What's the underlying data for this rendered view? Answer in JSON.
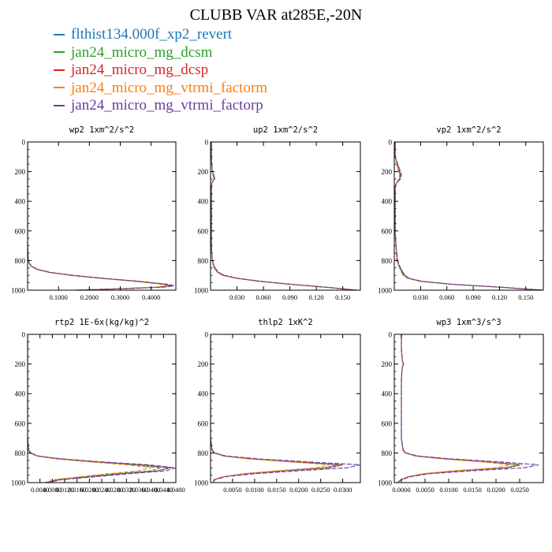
{
  "title": "CLUBB VAR at285E,-20N",
  "legend": [
    {
      "name": "flthist134.000f_xp2_revert",
      "color": "#1f77b4"
    },
    {
      "name": "jan24_micro_mg_dcsm",
      "color": "#2ca02c"
    },
    {
      "name": "jan24_micro_mg_dcsp",
      "color": "#d62728"
    },
    {
      "name": "jan24_micro_mg_vtrmi_factorm",
      "color": "#ff7f0e"
    },
    {
      "name": "jan24_micro_mg_vtrmi_factorp",
      "color": "#6a3d9a"
    }
  ],
  "chart_data": [
    {
      "type": "line",
      "title": "wp2   1xm^2/s^2",
      "xlim": [
        0,
        0.48
      ],
      "ylim": [
        1000,
        0
      ],
      "yticks": [
        0,
        200,
        400,
        600,
        800,
        1000
      ],
      "xticks": [
        "0.1000",
        "0.2000",
        "0.3000",
        "0.4000"
      ],
      "xtick_values": [
        0.1,
        0.2,
        0.3,
        0.4
      ],
      "y": [
        0,
        100,
        200,
        300,
        400,
        500,
        600,
        700,
        800,
        820,
        840,
        860,
        880,
        900,
        920,
        940,
        960,
        970,
        980,
        990,
        1000
      ],
      "series": [
        {
          "values": [
            0,
            0,
            0,
            0,
            0,
            0,
            0,
            0,
            0.002,
            0.005,
            0.012,
            0.03,
            0.07,
            0.14,
            0.24,
            0.35,
            0.44,
            0.46,
            0.42,
            0.3,
            0.15
          ]
        },
        {
          "values": [
            0,
            0,
            0,
            0,
            0,
            0,
            0,
            0,
            0.002,
            0.005,
            0.012,
            0.03,
            0.07,
            0.14,
            0.24,
            0.36,
            0.45,
            0.47,
            0.43,
            0.31,
            0.15
          ]
        },
        {
          "values": [
            0,
            0,
            0,
            0,
            0,
            0,
            0,
            0,
            0.002,
            0.006,
            0.014,
            0.032,
            0.072,
            0.145,
            0.245,
            0.355,
            0.445,
            0.465,
            0.425,
            0.305,
            0.15
          ]
        },
        {
          "values": [
            0,
            0,
            0,
            0,
            0,
            0,
            0,
            0,
            0.002,
            0.005,
            0.012,
            0.03,
            0.068,
            0.138,
            0.235,
            0.345,
            0.435,
            0.455,
            0.415,
            0.295,
            0.15
          ]
        },
        {
          "values": [
            0,
            0,
            0,
            0,
            0,
            0,
            0,
            0,
            0.002,
            0.006,
            0.015,
            0.034,
            0.075,
            0.15,
            0.25,
            0.36,
            0.455,
            0.475,
            0.44,
            0.32,
            0.16
          ]
        }
      ]
    },
    {
      "type": "line",
      "title": "up2   1xm^2/s^2",
      "xlim": [
        0,
        0.17
      ],
      "ylim": [
        1000,
        0
      ],
      "yticks": [
        0,
        200,
        400,
        600,
        800,
        1000
      ],
      "xticks": [
        "0.030",
        "0.060",
        "0.090",
        "0.120",
        "0.150"
      ],
      "xtick_values": [
        0.03,
        0.06,
        0.09,
        0.12,
        0.15
      ],
      "y": [
        0,
        100,
        200,
        230,
        250,
        270,
        300,
        400,
        500,
        600,
        700,
        800,
        850,
        880,
        900,
        920,
        940,
        960,
        980,
        1000
      ],
      "series": [
        {
          "values": [
            0.001,
            0.001,
            0.002,
            0.004,
            0.004,
            0.002,
            0.001,
            0.001,
            0.001,
            0.001,
            0.001,
            0.002,
            0.004,
            0.008,
            0.014,
            0.03,
            0.055,
            0.09,
            0.13,
            0.165
          ]
        },
        {
          "values": [
            0.001,
            0.001,
            0.002,
            0.003,
            0.004,
            0.002,
            0.001,
            0.001,
            0.001,
            0.001,
            0.001,
            0.002,
            0.004,
            0.008,
            0.015,
            0.031,
            0.056,
            0.091,
            0.131,
            0.166
          ]
        },
        {
          "values": [
            0.001,
            0.001,
            0.002,
            0.004,
            0.005,
            0.002,
            0.001,
            0.001,
            0.001,
            0.001,
            0.001,
            0.002,
            0.005,
            0.009,
            0.016,
            0.032,
            0.057,
            0.092,
            0.132,
            0.167
          ]
        },
        {
          "values": [
            0.001,
            0.001,
            0.002,
            0.003,
            0.004,
            0.002,
            0.001,
            0.001,
            0.001,
            0.001,
            0.001,
            0.002,
            0.004,
            0.008,
            0.014,
            0.029,
            0.054,
            0.089,
            0.129,
            0.164
          ]
        },
        {
          "values": [
            0.001,
            0.001,
            0.002,
            0.004,
            0.004,
            0.002,
            0.001,
            0.001,
            0.001,
            0.001,
            0.001,
            0.002,
            0.005,
            0.009,
            0.015,
            0.031,
            0.056,
            0.091,
            0.131,
            0.166
          ]
        }
      ]
    },
    {
      "type": "line",
      "title": "vp2   1xm^2/s^2",
      "xlim": [
        0,
        0.17
      ],
      "ylim": [
        1000,
        0
      ],
      "yticks": [
        0,
        200,
        400,
        600,
        800,
        1000
      ],
      "xticks": [
        "0.030",
        "0.060",
        "0.090",
        "0.120",
        "0.150"
      ],
      "xtick_values": [
        0.03,
        0.06,
        0.09,
        0.12,
        0.15
      ],
      "y": [
        0,
        100,
        150,
        200,
        220,
        250,
        270,
        300,
        400,
        500,
        600,
        700,
        800,
        850,
        880,
        900,
        920,
        940,
        960,
        980,
        1000
      ],
      "series": [
        {
          "values": [
            0.001,
            0.001,
            0.003,
            0.005,
            0.007,
            0.006,
            0.003,
            0.001,
            0.001,
            0.001,
            0.001,
            0.002,
            0.003,
            0.006,
            0.009,
            0.011,
            0.016,
            0.03,
            0.065,
            0.12,
            0.17
          ]
        },
        {
          "values": [
            0.001,
            0.001,
            0.003,
            0.006,
            0.008,
            0.007,
            0.003,
            0.001,
            0.001,
            0.001,
            0.001,
            0.002,
            0.003,
            0.006,
            0.009,
            0.012,
            0.017,
            0.031,
            0.066,
            0.121,
            0.17
          ]
        },
        {
          "values": [
            0.001,
            0.001,
            0.004,
            0.006,
            0.007,
            0.006,
            0.003,
            0.001,
            0.001,
            0.001,
            0.001,
            0.002,
            0.003,
            0.007,
            0.01,
            0.012,
            0.017,
            0.031,
            0.066,
            0.121,
            0.17
          ]
        },
        {
          "values": [
            0.001,
            0.001,
            0.003,
            0.005,
            0.006,
            0.005,
            0.003,
            0.001,
            0.001,
            0.001,
            0.001,
            0.002,
            0.003,
            0.006,
            0.008,
            0.01,
            0.015,
            0.029,
            0.064,
            0.119,
            0.17
          ]
        },
        {
          "values": [
            0.001,
            0.001,
            0.004,
            0.007,
            0.008,
            0.007,
            0.004,
            0.001,
            0.001,
            0.001,
            0.001,
            0.002,
            0.004,
            0.007,
            0.01,
            0.012,
            0.017,
            0.031,
            0.066,
            0.121,
            0.17
          ]
        }
      ]
    },
    {
      "type": "line",
      "title": "rtp2   1E-6x(kg/kg)^2",
      "xlim": [
        0,
        0.048
      ],
      "ylim": [
        1000,
        0
      ],
      "yticks": [
        0,
        200,
        400,
        600,
        800,
        1000
      ],
      "xticks": [
        "0.0040",
        "0.0080",
        "0.0120",
        "0.0160",
        "0.0200",
        "0.0240",
        "0.0280",
        "0.0320",
        "0.0360",
        "0.0400",
        "0.0440",
        "0.0480"
      ],
      "xtick_values": [
        0.004,
        0.008,
        0.012,
        0.016,
        0.02,
        0.024,
        0.028,
        0.032,
        0.036,
        0.04,
        0.044,
        0.048
      ],
      "y": [
        0,
        100,
        200,
        300,
        400,
        500,
        600,
        700,
        780,
        800,
        820,
        840,
        860,
        880,
        900,
        920,
        940,
        960,
        980,
        1000
      ],
      "series": [
        {
          "values": [
            0,
            0,
            0,
            0,
            0,
            0,
            0,
            0,
            0.0003,
            0.0008,
            0.003,
            0.01,
            0.022,
            0.036,
            0.046,
            0.042,
            0.03,
            0.02,
            0.01,
            0.006
          ]
        },
        {
          "values": [
            0,
            0,
            0,
            0,
            0,
            0,
            0,
            0,
            0.0003,
            0.0008,
            0.003,
            0.01,
            0.021,
            0.034,
            0.043,
            0.04,
            0.028,
            0.018,
            0.009,
            0.0055
          ]
        },
        {
          "values": [
            0,
            0,
            0,
            0,
            0,
            0,
            0,
            0,
            0.0003,
            0.0009,
            0.0032,
            0.0105,
            0.0225,
            0.0365,
            0.0465,
            0.0425,
            0.0305,
            0.0205,
            0.0105,
            0.006
          ]
        },
        {
          "values": [
            0,
            0,
            0,
            0,
            0,
            0,
            0,
            0,
            0.0003,
            0.0008,
            0.003,
            0.009,
            0.02,
            0.032,
            0.04,
            0.036,
            0.026,
            0.017,
            0.009,
            0.0055
          ]
        },
        {
          "values": [
            0,
            0,
            0,
            0,
            0,
            0,
            0,
            0,
            0.0004,
            0.001,
            0.0035,
            0.011,
            0.024,
            0.039,
            0.048,
            0.045,
            0.033,
            0.022,
            0.011,
            0.0065
          ]
        }
      ]
    },
    {
      "type": "line",
      "title": "thlp2   1xK^2",
      "xlim": [
        0,
        0.034
      ],
      "ylim": [
        1000,
        0
      ],
      "yticks": [
        0,
        200,
        400,
        600,
        800,
        1000
      ],
      "xticks": [
        "0.0050",
        "0.0100",
        "0.0150",
        "0.0200",
        "0.0250",
        "0.0300"
      ],
      "xtick_values": [
        0.005,
        0.01,
        0.015,
        0.02,
        0.025,
        0.03
      ],
      "y": [
        0,
        100,
        200,
        300,
        400,
        500,
        600,
        700,
        780,
        800,
        820,
        840,
        860,
        880,
        900,
        920,
        940,
        960,
        980,
        1000
      ],
      "series": [
        {
          "values": [
            0,
            0,
            0,
            0,
            0,
            0,
            0,
            0,
            0.0003,
            0.0008,
            0.003,
            0.009,
            0.019,
            0.029,
            0.026,
            0.016,
            0.008,
            0.003,
            0.0008,
            0.0005
          ]
        },
        {
          "values": [
            0,
            0,
            0,
            0,
            0,
            0,
            0,
            0,
            0.0003,
            0.0008,
            0.003,
            0.009,
            0.019,
            0.03,
            0.027,
            0.017,
            0.0085,
            0.003,
            0.0008,
            0.0005
          ]
        },
        {
          "values": [
            0,
            0,
            0,
            0,
            0,
            0,
            0,
            0,
            0.0003,
            0.0009,
            0.0032,
            0.0095,
            0.0195,
            0.03,
            0.027,
            0.017,
            0.0085,
            0.003,
            0.0008,
            0.0005
          ]
        },
        {
          "values": [
            0,
            0,
            0,
            0,
            0,
            0,
            0,
            0,
            0.0003,
            0.0008,
            0.0028,
            0.0085,
            0.018,
            0.027,
            0.024,
            0.015,
            0.0075,
            0.0028,
            0.0008,
            0.0005
          ]
        },
        {
          "values": [
            0,
            0,
            0,
            0,
            0,
            0,
            0,
            0,
            0.0004,
            0.001,
            0.0035,
            0.011,
            0.022,
            0.034,
            0.031,
            0.02,
            0.01,
            0.0035,
            0.001,
            0.0006
          ]
        }
      ]
    },
    {
      "type": "line",
      "title": "wp3   1xm^3/s^3",
      "xlim": [
        -0.0015,
        0.03
      ],
      "ylim": [
        1000,
        0
      ],
      "yticks": [
        0,
        200,
        400,
        600,
        800,
        1000
      ],
      "xticks": [
        "0.0000",
        "0.0050",
        "0.0100",
        "0.0150",
        "0.0200",
        "0.0250"
      ],
      "xtick_values": [
        0,
        0.005,
        0.01,
        0.015,
        0.02,
        0.025
      ],
      "y": [
        0,
        100,
        180,
        200,
        220,
        300,
        400,
        500,
        600,
        700,
        780,
        800,
        820,
        840,
        860,
        880,
        900,
        920,
        940,
        960,
        980,
        1000
      ],
      "series": [
        {
          "values": [
            0,
            0,
            0.0002,
            0.0005,
            0.0002,
            0,
            0,
            0,
            0,
            0,
            0.0003,
            0.0008,
            0.003,
            0.009,
            0.018,
            0.025,
            0.022,
            0.012,
            0.005,
            0.0015,
            0,
            -0.0008
          ]
        },
        {
          "values": [
            0,
            0,
            0.0002,
            0.0004,
            0.0002,
            0,
            0,
            0,
            0,
            0,
            0.0003,
            0.0008,
            0.003,
            0.009,
            0.018,
            0.025,
            0.022,
            0.012,
            0.005,
            0.0015,
            0,
            -0.0008
          ]
        },
        {
          "values": [
            0,
            0,
            0.0002,
            0.0005,
            0.0002,
            0,
            0,
            0,
            0,
            0,
            0.0003,
            0.0009,
            0.0032,
            0.0095,
            0.0185,
            0.0255,
            0.0225,
            0.0125,
            0.0052,
            0.0015,
            0,
            -0.0008
          ]
        },
        {
          "values": [
            0,
            0,
            0.0002,
            0.0004,
            0.0002,
            0,
            0,
            0,
            0,
            0,
            0.0003,
            0.0008,
            0.0028,
            0.0085,
            0.017,
            0.023,
            0.02,
            0.011,
            0.0045,
            0.0013,
            0,
            -0.0008
          ]
        },
        {
          "values": [
            0,
            0,
            0.0002,
            0.0005,
            0.0002,
            0,
            0,
            0,
            0,
            0,
            0.0004,
            0.001,
            0.0035,
            0.0105,
            0.021,
            0.029,
            0.026,
            0.015,
            0.006,
            0.002,
            0,
            -0.0009
          ]
        }
      ]
    }
  ]
}
